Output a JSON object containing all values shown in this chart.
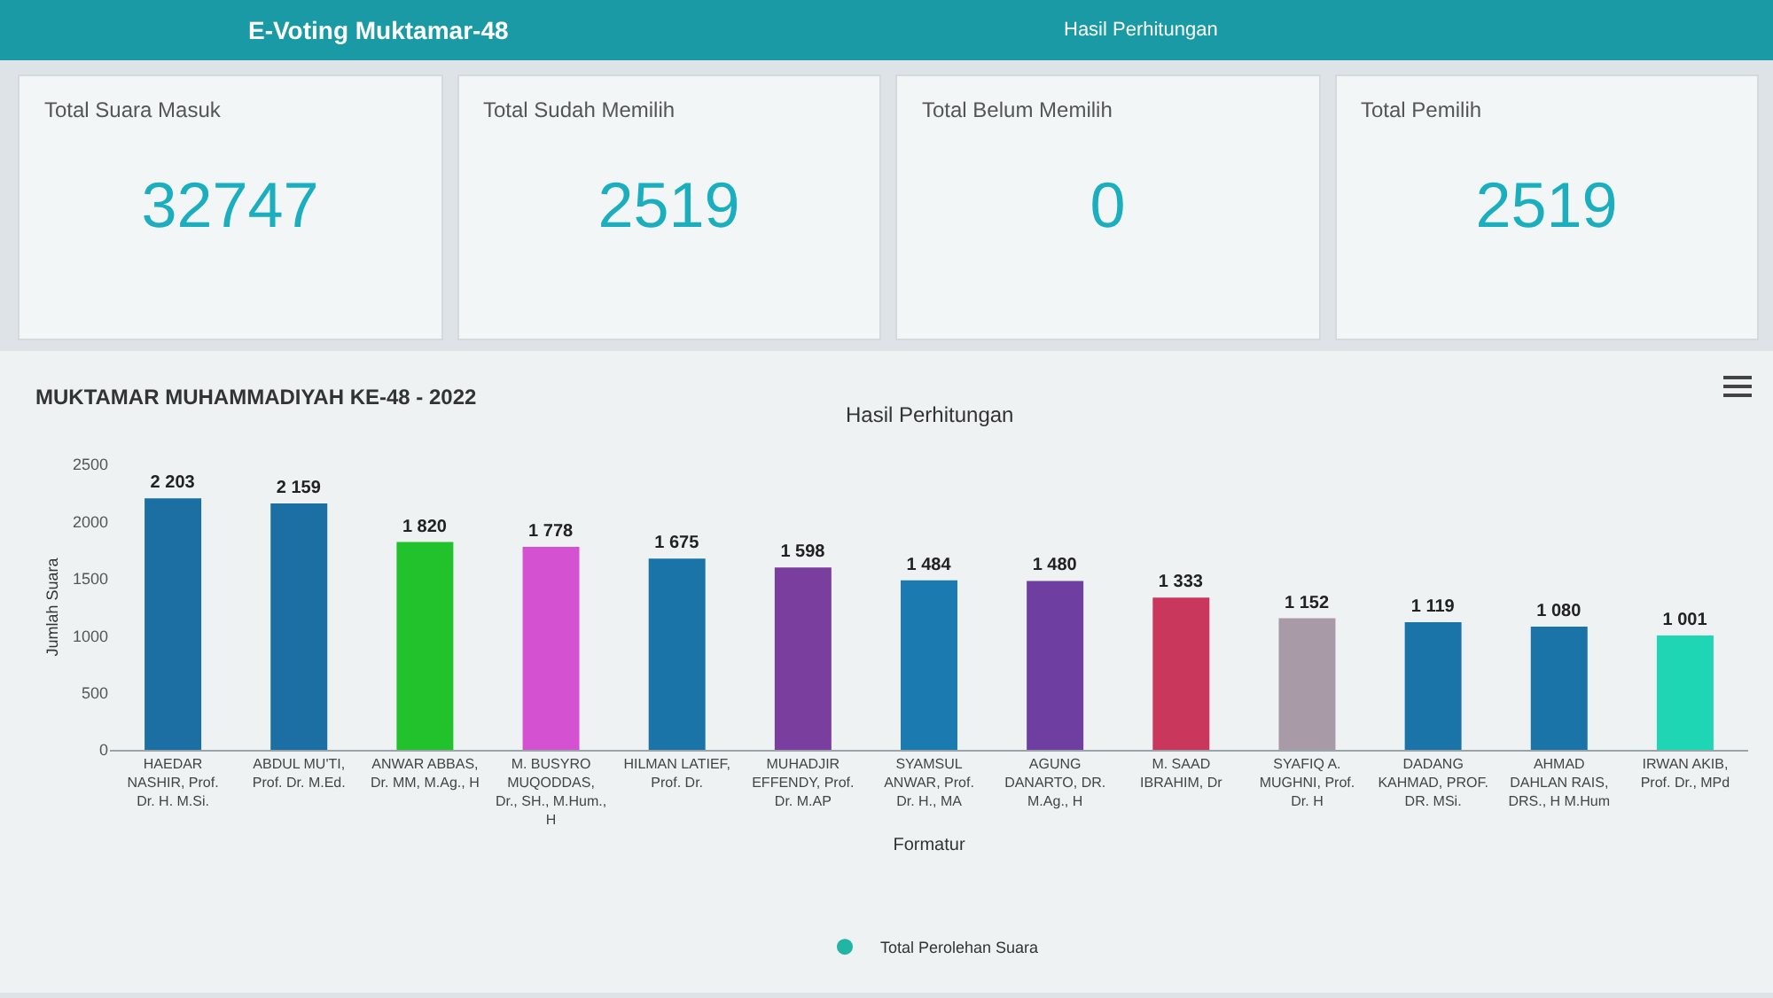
{
  "chart_data": [
    {
      "type": "other",
      "title": "E-Voting Muktamar-48",
      "annotations": [
        "Hasil Perhitungan"
      ],
      "categories": [
        "Total Suara Masuk",
        "Total Sudah Memilih",
        "Total Belum Memilih",
        "Total Pemilih"
      ],
      "values": [
        32747,
        2519,
        0,
        2519
      ],
      "data_labels": true
    },
    {
      "type": "bar",
      "title": "MUKTAMAR MUHAMMADIYAH KE-48 - 2022",
      "subtitle": "Hasil Perhitungan",
      "xlabel": "Formatur",
      "ylabel": "Jumlah Suara",
      "categories": [
        "HAEDAR NASHIR, Prof. Dr. H. M.Si.",
        "ABDUL MU'TI, Prof. Dr. M.Ed.",
        "ANWAR ABBAS, Dr. MM, M.Ag., H",
        "M. BUSYRO MUQODDAS, Dr., SH., M.Hum., H",
        "HILMAN LATIEF, Prof. Dr.",
        "MUHADJIR EFFENDY, Prof. Dr. M.AP",
        "SYAMSUL ANWAR, Prof. Dr. H., MA",
        "AGUNG DANARTO, DR. M.Ag., H",
        "M. SAAD IBRAHIM, Dr",
        "SYAFIQ A. MUGHNI, Prof. Dr. H",
        "DADANG KAHMAD, PROF. DR. MSi.",
        "AHMAD DAHLAN RAIS, DRS., H M.Hum",
        "IRWAN AKIB, Prof. Dr., MPd"
      ],
      "series": [
        {
          "name": "Total Perolehan Suara",
          "color": "#22b5a5",
          "colors": [
            "#1b6fa3",
            "#1b6fa3",
            "#22c22c",
            "#d452d2",
            "#1b74a8",
            "#7a3f9e",
            "#1b7ab0",
            "#6e3fa0",
            "#c9375c",
            "#a99aa8",
            "#1b74a8",
            "#1b74a8",
            "#1fd6b4"
          ],
          "values": [
            2203,
            2159,
            1820,
            1778,
            1675,
            1598,
            1484,
            1480,
            1333,
            1152,
            1119,
            1080,
            1001
          ],
          "value_labels": [
            "2 203",
            "2 159",
            "1 820",
            "1 778",
            "1 675",
            "1 598",
            "1 484",
            "1 480",
            "1 333",
            "1 152",
            "1 119",
            "1 080",
            "1 001"
          ]
        }
      ],
      "ylim": [
        0,
        2500
      ],
      "yticks": [
        0,
        500,
        1000,
        1500,
        2000,
        2500
      ],
      "legend": "bottom"
    }
  ]
}
